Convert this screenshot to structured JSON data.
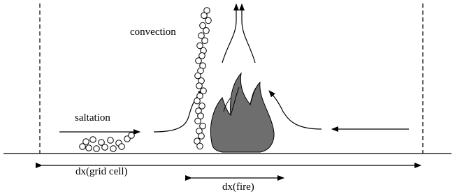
{
  "labels": {
    "convection": "convection",
    "saltation": "saltation",
    "grid_cell": "dx(grid cell)",
    "fire": "dx(fire)"
  }
}
